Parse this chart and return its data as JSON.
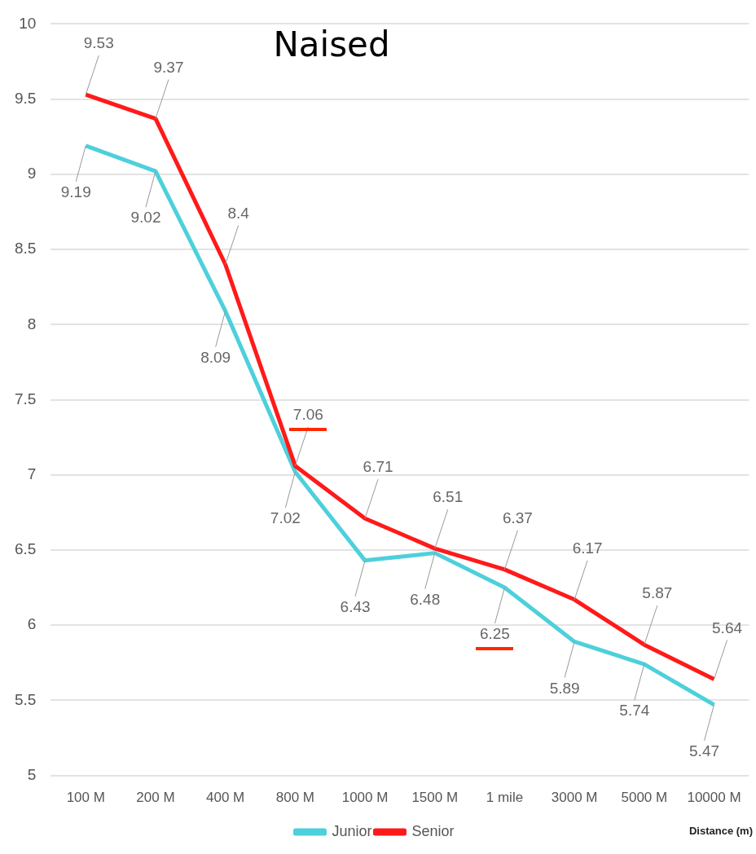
{
  "chart_data": {
    "type": "line",
    "title": "Naised",
    "xlabel": "Distance (m)",
    "categories": [
      "100 M",
      "200 M",
      "400 M",
      "800 M",
      "1000 M",
      "1500 M",
      "1 mile",
      "3000 M",
      "5000 M",
      "10000 M"
    ],
    "series": [
      {
        "name": "Junior",
        "color": "#4dd0db",
        "values": [
          9.19,
          9.02,
          8.09,
          7.02,
          6.43,
          6.48,
          6.25,
          5.89,
          5.74,
          5.47
        ]
      },
      {
        "name": "Senior",
        "color": "#ff1a1a",
        "values": [
          9.53,
          9.37,
          8.4,
          7.06,
          6.71,
          6.51,
          6.37,
          6.17,
          5.87,
          5.64
        ]
      }
    ],
    "ylim": [
      5,
      10
    ],
    "yticks": [
      5,
      5.5,
      6,
      6.5,
      7,
      7.5,
      8,
      8.5,
      9,
      9.5,
      10
    ],
    "data_labels": true,
    "grid": "y",
    "legend": "bottom",
    "marker": "none",
    "line_style": "solid"
  }
}
